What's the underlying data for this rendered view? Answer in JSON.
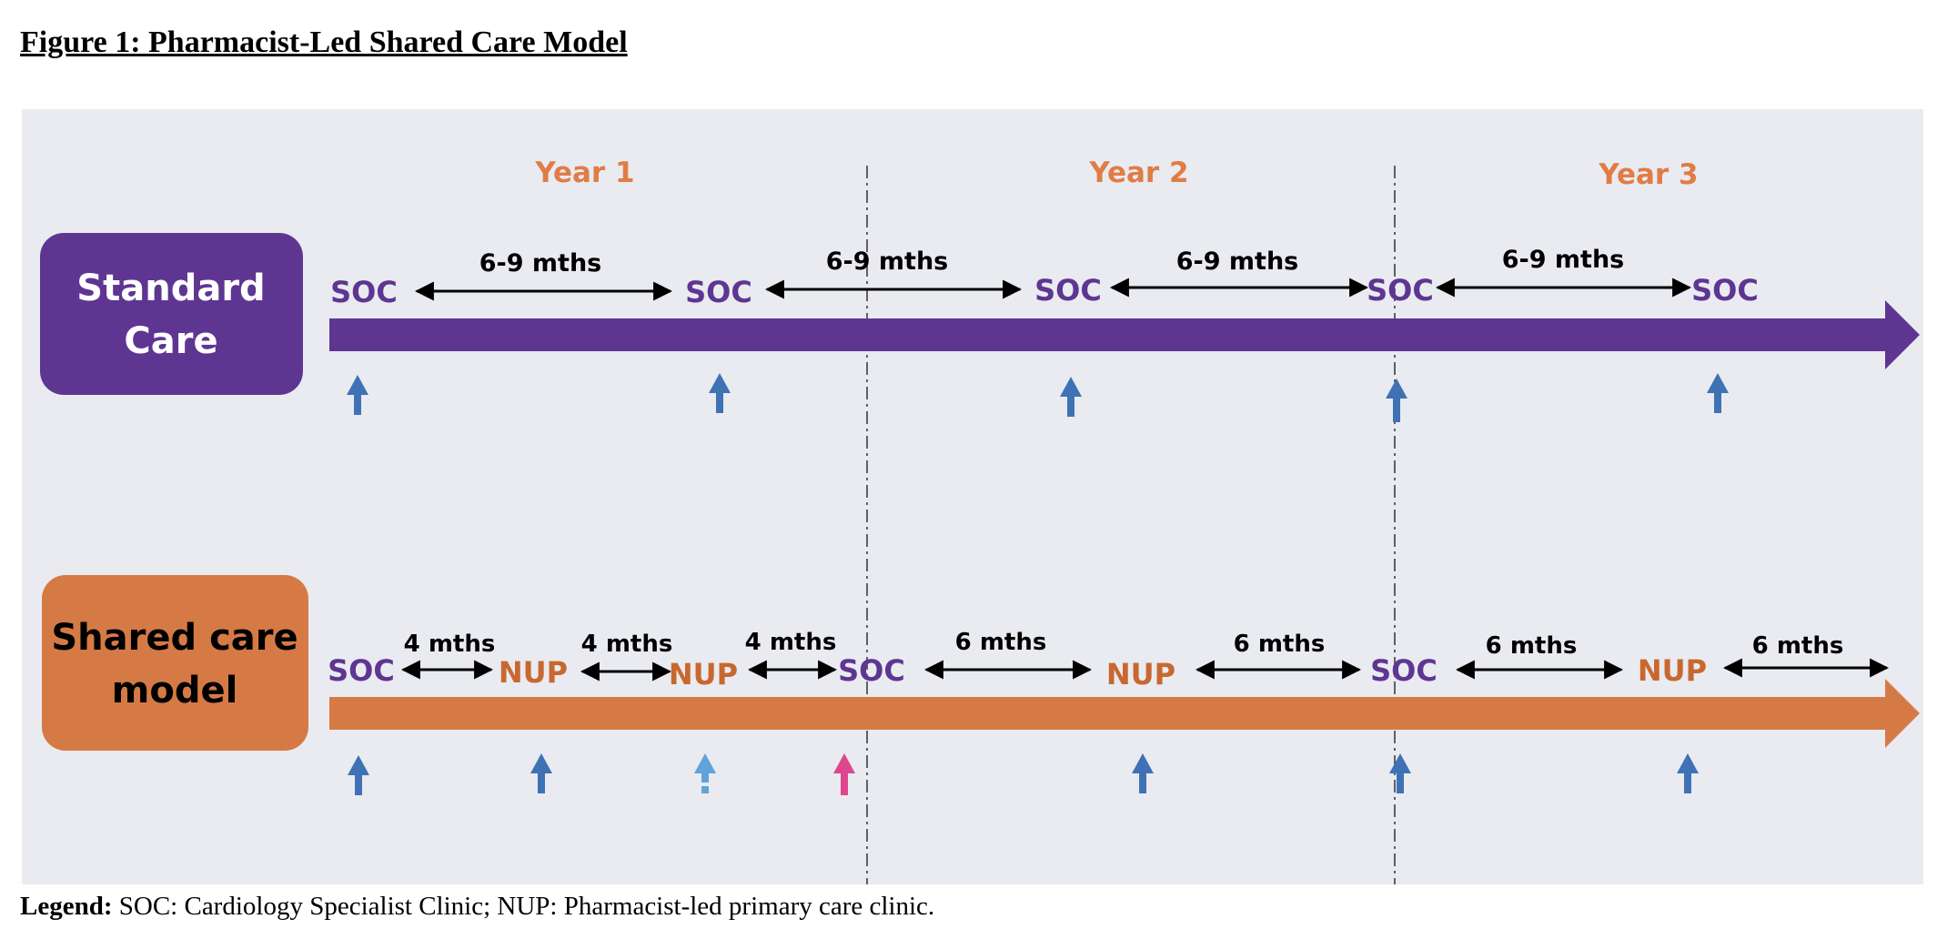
{
  "figure_title": "Figure 1: Pharmacist-Led Shared Care Model",
  "years": [
    "Year 1",
    "Year 2",
    "Year 3"
  ],
  "rows": {
    "standard": {
      "label_line1": "Standard",
      "label_line2": "Care",
      "visits": [
        "SOC",
        "SOC",
        "SOC",
        "SOC",
        "SOC"
      ],
      "intervals": [
        "6-9 mths",
        "6-9 mths",
        "6-9 mths",
        "6-9 mths"
      ]
    },
    "shared": {
      "label_line1": "Shared care",
      "label_line2": "model",
      "visits": [
        "SOC",
        "NUP",
        "NUP",
        "SOC",
        "NUP",
        "SOC",
        "NUP"
      ],
      "intervals": [
        "4 mths",
        "4 mths",
        "4 mths",
        "6 mths",
        "6 mths",
        "6 mths",
        "6 mths"
      ]
    }
  },
  "colors": {
    "purple": "#5e3692",
    "orange": "#d67a45",
    "year_text": "#e07c45",
    "arrow_blue": "#3f72b5",
    "arrow_light_blue": "#5fa3da",
    "arrow_pink": "#e0468f",
    "panel_bg": "#e9ebf0"
  },
  "legend": {
    "label": "Legend:",
    "text": " SOC: Cardiology Specialist Clinic; NUP: Pharmacist-led primary care clinic."
  }
}
